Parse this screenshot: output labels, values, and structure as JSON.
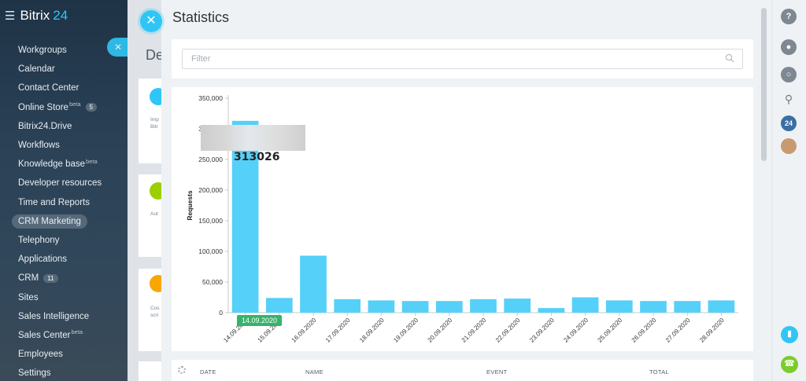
{
  "sidebar": {
    "brand": "Bitrix",
    "brand_num": "24",
    "items": [
      {
        "label": "Workgroups"
      },
      {
        "label": "Calendar"
      },
      {
        "label": "Contact Center"
      },
      {
        "label": "Online Store",
        "sup": "beta",
        "count": "5"
      },
      {
        "label": "Bitrix24.Drive"
      },
      {
        "label": "Workflows"
      },
      {
        "label": "Knowledge base",
        "sup": "beta"
      },
      {
        "label": "Developer resources"
      },
      {
        "label": "Time and Reports"
      },
      {
        "label": "CRM Marketing",
        "active": true
      },
      {
        "label": "Telephony"
      },
      {
        "label": "Applications"
      },
      {
        "label": "CRM",
        "count": "11"
      },
      {
        "label": "Sites"
      },
      {
        "label": "Sales Intelligence"
      },
      {
        "label": "Sales Center",
        "sup": "beta"
      },
      {
        "label": "Employees"
      },
      {
        "label": "Settings"
      }
    ]
  },
  "background_page": {
    "title_fragment": "De",
    "card1_text": "Imp\nBitr",
    "card2_text": "Aut",
    "card3_text": "Cus\nscri"
  },
  "panel": {
    "title": "Statistics",
    "filter_placeholder": "Filter"
  },
  "tooltip": {
    "value": "313026",
    "date": "14.09.2020"
  },
  "table": {
    "headers": [
      "DATE",
      "NAME",
      "EVENT",
      "TOTAL"
    ]
  },
  "rightbar": {
    "badge": "24"
  },
  "colors": {
    "accent": "#2fc6f6",
    "bar": "#55d0f8",
    "badge_green": "#35b36a",
    "phone_green": "#7ccc2c",
    "brand_blue": "#2fc6f6"
  },
  "chart_data": {
    "type": "bar",
    "ylabel": "Requests",
    "xlabel": "",
    "ylim": [
      0,
      350000
    ],
    "yticks": [
      "0",
      "50,000",
      "100,000",
      "150,000",
      "200,000",
      "250,000",
      "300,000",
      "350,000"
    ],
    "categories": [
      "14.09.2020",
      "15.09.2020",
      "16.09.2020",
      "17.09.2020",
      "18.09.2020",
      "19.09.2020",
      "20.09.2020",
      "21.09.2020",
      "22.09.2020",
      "23.09.2020",
      "24.09.2020",
      "25.09.2020",
      "26.09.2020",
      "27.09.2020",
      "28.09.2020"
    ],
    "values": [
      313026,
      24000,
      93000,
      22000,
      20000,
      19000,
      19000,
      22000,
      23000,
      7500,
      25000,
      20000,
      19000,
      19000,
      20000
    ]
  }
}
